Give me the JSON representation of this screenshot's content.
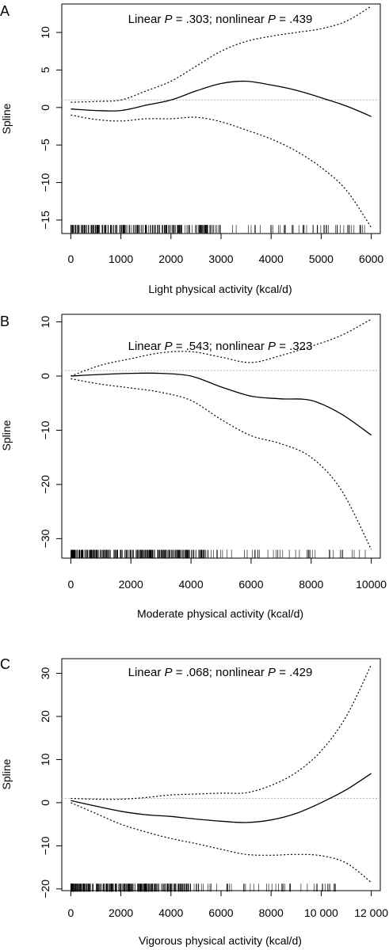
{
  "chart_data": [
    {
      "panel_label": "A",
      "type": "line",
      "xlabel": "Light physical activity (kcal/d)",
      "ylabel": "Spline",
      "annotation": {
        "linear_label": "Linear",
        "p_symbol": "P",
        "linear_p": "= .303;",
        "nonlinear_label": "nonlinear",
        "nonlinear_p": "= .439"
      },
      "xlim": [
        -180,
        6180
      ],
      "ylim": [
        -16.8,
        13.8
      ],
      "xticks": [
        0,
        1000,
        2000,
        3000,
        4000,
        5000,
        6000
      ],
      "xtick_labels": [
        "0",
        "1000",
        "2000",
        "3000",
        "4000",
        "5000",
        "6000"
      ],
      "yticks": [
        -15,
        -10,
        -5,
        0,
        5,
        10
      ],
      "ytick_labels": [
        "−15",
        "−10",
        "−5",
        "0",
        "5",
        "10"
      ],
      "reference_line": 1,
      "rug_y": -16.2,
      "rug": {
        "dense_max": 3000,
        "sparse_max": 5900,
        "dense_count": 260,
        "sparse_count": 50
      },
      "series": [
        {
          "style": "fit",
          "x": [
            0,
            500,
            1000,
            1500,
            2000,
            2500,
            3000,
            3500,
            4000,
            4500,
            5000,
            5500,
            6000
          ],
          "y": [
            -0.2,
            -0.4,
            -0.4,
            0.3,
            1.0,
            2.2,
            3.2,
            3.5,
            3.0,
            2.3,
            1.3,
            0.2,
            -1.2
          ]
        },
        {
          "style": "ci",
          "x": [
            0,
            500,
            1000,
            1500,
            2000,
            2500,
            3000,
            3500,
            4000,
            4500,
            5000,
            5500,
            6000
          ],
          "y": [
            0.7,
            0.8,
            1.0,
            2.2,
            3.5,
            5.5,
            7.5,
            8.8,
            9.5,
            10.0,
            10.5,
            11.5,
            13.5
          ]
        },
        {
          "style": "ci",
          "x": [
            0,
            500,
            1000,
            1500,
            2000,
            2500,
            3000,
            3500,
            4000,
            4500,
            5000,
            5500,
            6000
          ],
          "y": [
            -1.0,
            -1.6,
            -1.8,
            -1.5,
            -1.5,
            -1.3,
            -1.9,
            -3.0,
            -4.2,
            -5.8,
            -8.0,
            -11.0,
            -16.0
          ]
        }
      ]
    },
    {
      "panel_label": "B",
      "type": "line",
      "xlabel": "Moderate physical activity (kcal/d)",
      "ylabel": "Spline",
      "annotation": {
        "linear_label": "Linear",
        "p_symbol": "P",
        "linear_p": "= .543;",
        "nonlinear_label": "nonlinear",
        "nonlinear_p": "= .323"
      },
      "xlim": [
        -300,
        10300
      ],
      "ylim": [
        -33.6,
        11.4
      ],
      "xticks": [
        0,
        2000,
        4000,
        6000,
        8000,
        10000
      ],
      "xtick_labels": [
        "0",
        "2000",
        "4000",
        "6000",
        "8000",
        "10000"
      ],
      "yticks": [
        -30,
        -20,
        -10,
        0,
        10
      ],
      "ytick_labels": [
        "−30",
        "−20",
        "−10",
        "0",
        "10"
      ],
      "reference_line": 1,
      "rug_y": -32.8,
      "rug": {
        "dense_max": 4600,
        "sparse_max": 9900,
        "dense_count": 280,
        "sparse_count": 45
      },
      "series": [
        {
          "style": "fit",
          "x": [
            0,
            1000,
            2000,
            3000,
            4000,
            5000,
            6000,
            7000,
            8000,
            9000,
            10000
          ],
          "y": [
            0.0,
            0.3,
            0.5,
            0.5,
            0.0,
            -2.0,
            -3.7,
            -4.2,
            -4.5,
            -7.0,
            -10.9
          ]
        },
        {
          "style": "ci",
          "x": [
            0,
            1000,
            2000,
            3000,
            4000,
            5000,
            6000,
            7000,
            8000,
            9000,
            10000
          ],
          "y": [
            0.0,
            2.0,
            3.2,
            4.3,
            4.5,
            3.5,
            2.5,
            3.8,
            5.5,
            7.5,
            10.5
          ]
        },
        {
          "style": "ci",
          "x": [
            0,
            1000,
            2000,
            3000,
            4000,
            5000,
            6000,
            7000,
            8000,
            9000,
            10000
          ],
          "y": [
            -0.5,
            -1.5,
            -2.2,
            -3.0,
            -4.5,
            -8.0,
            -11.0,
            -12.5,
            -15.0,
            -21.0,
            -32.0
          ]
        }
      ]
    },
    {
      "panel_label": "C",
      "type": "line",
      "xlabel": "Vigorous physical activity (kcal/d)",
      "ylabel": "Spline",
      "annotation": {
        "linear_label": "Linear",
        "p_symbol": "P",
        "linear_p": "= .068;",
        "nonlinear_label": "nonlinear",
        "nonlinear_p": "= .429"
      },
      "xlim": [
        -360,
        12360
      ],
      "ylim": [
        -20.4,
        33.4
      ],
      "xticks": [
        0,
        2000,
        4000,
        6000,
        8000,
        10000,
        12000
      ],
      "xtick_labels": [
        "0",
        "2000",
        "4000",
        "6000",
        "8000",
        "10 000",
        "12 000"
      ],
      "yticks": [
        -20,
        -10,
        0,
        10,
        20,
        30
      ],
      "ytick_labels": [
        "−20",
        "−10",
        "0",
        "10",
        "20",
        "30"
      ],
      "reference_line": 1,
      "rug_y": -19.7,
      "rug": {
        "dense_max": 4800,
        "sparse_max": 10800,
        "dense_count": 290,
        "sparse_count": 50
      },
      "series": [
        {
          "style": "fit",
          "x": [
            0,
            1000,
            2000,
            3000,
            4000,
            5000,
            6000,
            7000,
            8000,
            9000,
            10000,
            11000,
            12000
          ],
          "y": [
            0.5,
            -0.8,
            -2.0,
            -2.8,
            -3.2,
            -3.8,
            -4.3,
            -4.6,
            -4.0,
            -2.5,
            0.0,
            3.0,
            6.8
          ]
        },
        {
          "style": "ci",
          "x": [
            0,
            1000,
            2000,
            3000,
            4000,
            5000,
            6000,
            7000,
            8000,
            9000,
            10000,
            11000,
            12000
          ],
          "y": [
            1.0,
            0.8,
            0.8,
            1.2,
            1.8,
            2.0,
            2.2,
            2.3,
            4.0,
            7.0,
            12.0,
            20.0,
            32.0
          ]
        },
        {
          "style": "ci",
          "x": [
            0,
            1000,
            2000,
            3000,
            4000,
            5000,
            6000,
            7000,
            8000,
            9000,
            10000,
            11000,
            12000
          ],
          "y": [
            0.0,
            -2.5,
            -5.0,
            -6.8,
            -8.3,
            -9.5,
            -10.8,
            -12.0,
            -12.2,
            -12.0,
            -12.3,
            -14.0,
            -18.5
          ]
        }
      ]
    }
  ]
}
